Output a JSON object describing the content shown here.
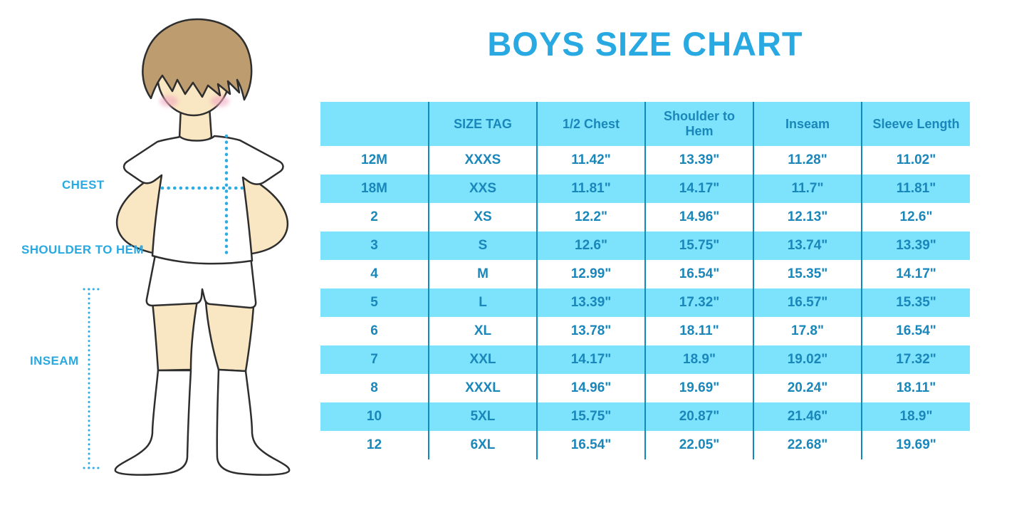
{
  "title": "BOYS SIZE CHART",
  "figure": {
    "labels": {
      "chest": "CHEST",
      "shoulder_to_hem": "SHOULDER TO HEM",
      "inseam": "INSEAM"
    }
  },
  "table": {
    "columns": [
      "",
      "SIZE TAG",
      "1/2 Chest",
      "Shoulder to Hem",
      "Inseam",
      "Sleeve Length"
    ],
    "rows": [
      [
        "12M",
        "XXXS",
        "11.42\"",
        "13.39\"",
        "11.28\"",
        "11.02\""
      ],
      [
        "18M",
        "XXS",
        "11.81\"",
        "14.17\"",
        "11.7\"",
        "11.81\""
      ],
      [
        "2",
        "XS",
        "12.2\"",
        "14.96\"",
        "12.13\"",
        "12.6\""
      ],
      [
        "3",
        "S",
        "12.6\"",
        "15.75\"",
        "13.74\"",
        "13.39\""
      ],
      [
        "4",
        "M",
        "12.99\"",
        "16.54\"",
        "15.35\"",
        "14.17\""
      ],
      [
        "5",
        "L",
        "13.39\"",
        "17.32\"",
        "16.57\"",
        "15.35\""
      ],
      [
        "6",
        "XL",
        "13.78\"",
        "18.11\"",
        "17.8\"",
        "16.54\""
      ],
      [
        "7",
        "XXL",
        "14.17\"",
        "18.9\"",
        "19.02\"",
        "17.32\""
      ],
      [
        "8",
        "XXXL",
        "14.96\"",
        "19.69\"",
        "20.24\"",
        "18.11\""
      ],
      [
        "10",
        "5XL",
        "15.75\"",
        "20.87\"",
        "21.46\"",
        "18.9\""
      ],
      [
        "12",
        "6XL",
        "16.54\"",
        "22.05\"",
        "22.68\"",
        "19.69\""
      ]
    ]
  },
  "colors": {
    "title_blue": "#29A9E2",
    "table_text_blue": "#1A87BB",
    "stripe_blue": "#7DE2FB",
    "divider_blue": "#1089BB",
    "label_blue": "#29A9E2",
    "dotted_line_blue": "#2BACE3",
    "skin": "#F9E6C2",
    "hair_brown": "#BD9C70",
    "blush_pink": "#F2A9C0"
  }
}
